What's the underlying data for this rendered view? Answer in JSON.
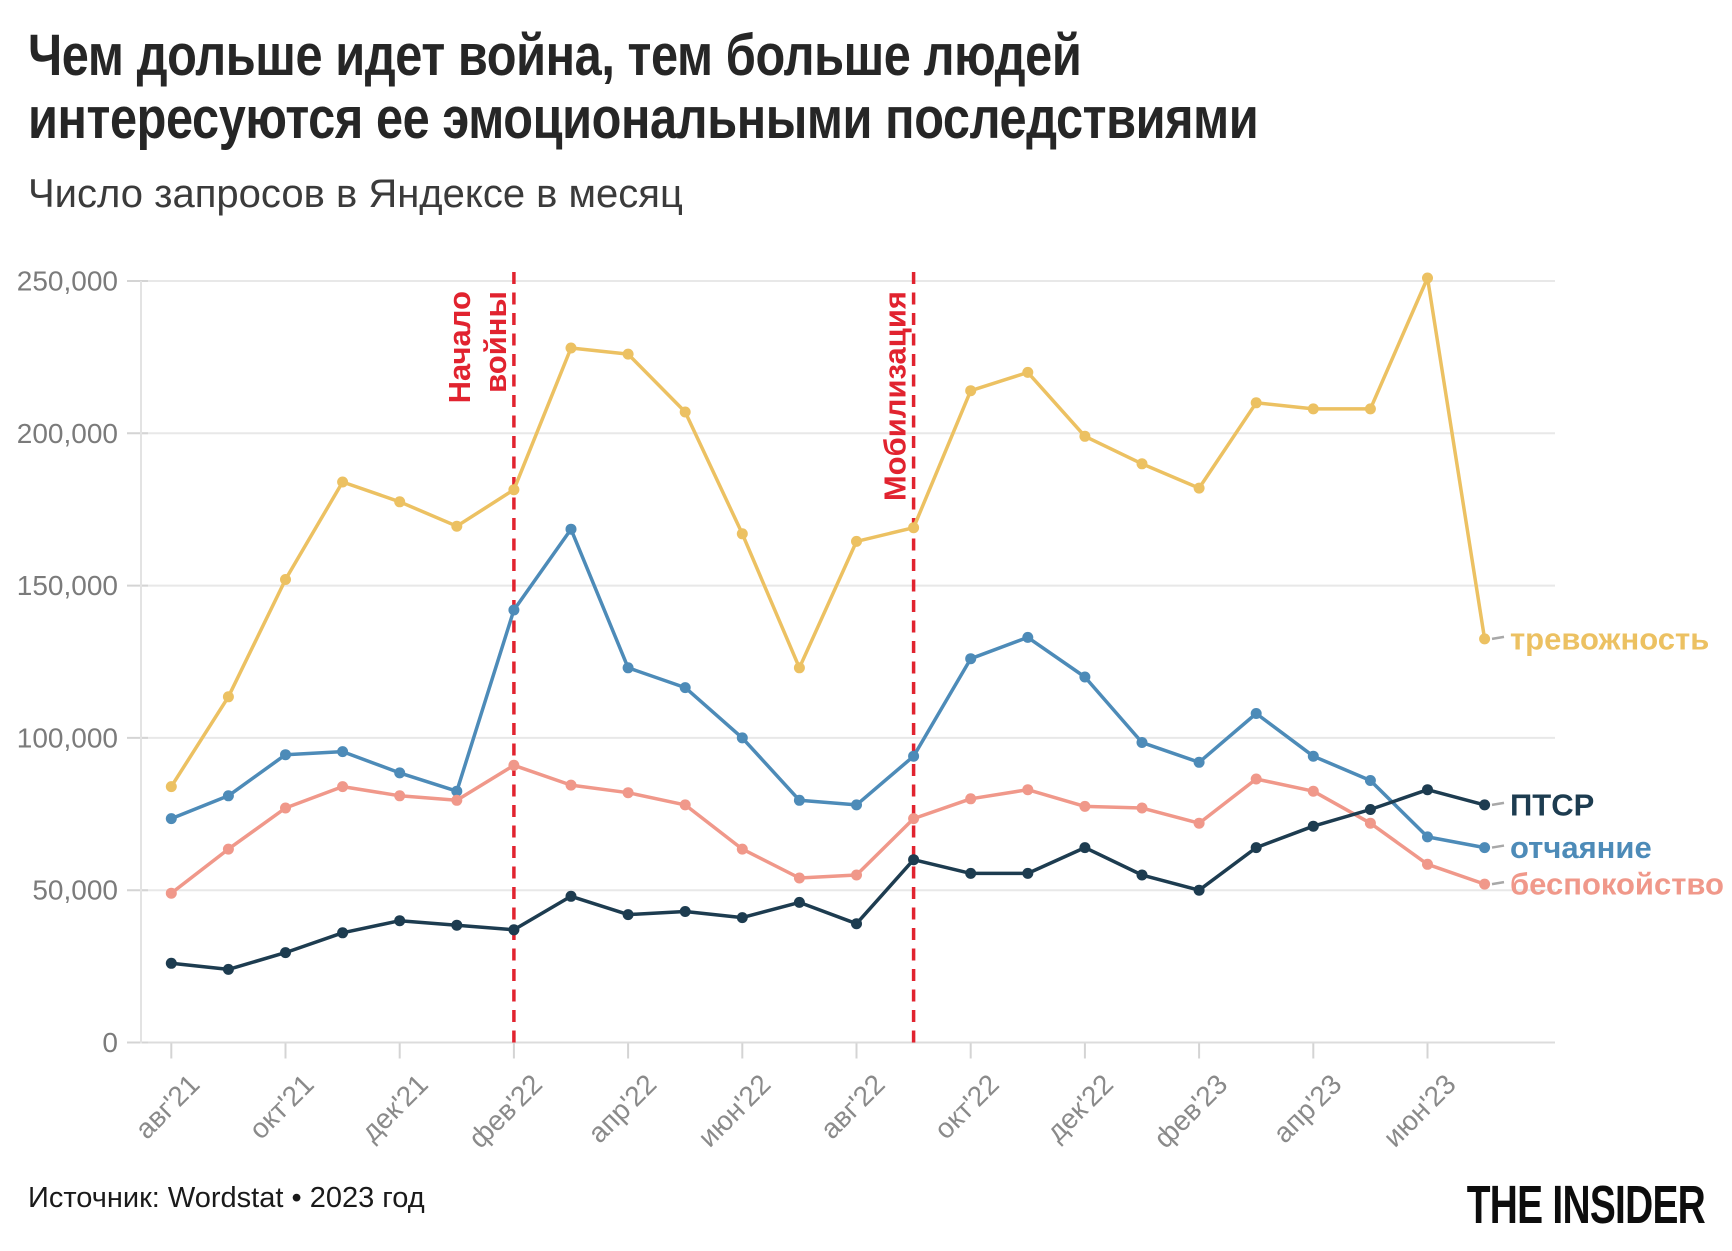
{
  "header": {
    "title_line1": "Чем дольше идет война, тем больше людей",
    "title_line2": "интересуются ее эмоциональными последствиями",
    "subtitle": "Число запросов в Яндексе в месяц"
  },
  "footer": {
    "source": "Источник: Wordstat • 2023 год",
    "logo": "THE INSIDER"
  },
  "colors": {
    "grid": "#e8e8e8",
    "axis_line": "#e3e3e3",
    "tick": "#d4d4d4",
    "axis_text": "#7b7b7b",
    "x_axis_text": "#8a8a8a",
    "legend_dash": "#a8a8a8",
    "annotation_red": "#e1232f",
    "background": "#ffffff"
  },
  "chart_data": {
    "type": "line",
    "title": "Чем дольше идет война, тем больше людей интересуются ее эмоциональными последствиями",
    "subtitle": "Число запросов в Яндексе в месяц",
    "x": [
      "авг'21",
      "сен'21",
      "окт'21",
      "ноя'21",
      "дек'21",
      "янв'22",
      "фев'22",
      "мар'22",
      "апр'22",
      "май'22",
      "июн'22",
      "июл'22",
      "авг'22",
      "сен'22",
      "окт'22",
      "ноя'22",
      "дек'22",
      "янв'23",
      "фев'23",
      "мар'23",
      "апр'23",
      "май'23",
      "июн'23",
      "июл'23"
    ],
    "x_tick_indices": [
      0,
      2,
      4,
      6,
      8,
      10,
      12,
      14,
      16,
      18,
      20,
      22
    ],
    "x_tick_labels": [
      "авг'21",
      "окт'21",
      "дек'21",
      "фев'22",
      "апр'22",
      "июн'22",
      "авг'22",
      "окт'22",
      "дек'22",
      "фев'23",
      "апр'23",
      "июн'23"
    ],
    "ylim": [
      0,
      250000
    ],
    "y_ticks": [
      0,
      50000,
      100000,
      150000,
      200000,
      250000
    ],
    "y_tick_labels": [
      "0",
      "50,000",
      "100,000",
      "150,000",
      "200,000",
      "250,000"
    ],
    "grid": "horizontal",
    "legend_position": "right-end-labels",
    "series": [
      {
        "key": "anxiety",
        "name": "тревожность",
        "color": "#ecc162",
        "values": [
          84000,
          113500,
          152000,
          184000,
          177500,
          169500,
          181500,
          228000,
          226000,
          207000,
          167000,
          123000,
          164500,
          169000,
          214000,
          220000,
          199000,
          190000,
          182000,
          210000,
          208000,
          208000,
          251000,
          132500
        ]
      },
      {
        "key": "despair",
        "name": "отчаяние",
        "color": "#4d8bb8",
        "values": [
          73500,
          81000,
          94500,
          95500,
          88500,
          82500,
          142000,
          168500,
          123000,
          116500,
          100000,
          79500,
          78000,
          94000,
          126000,
          133000,
          120000,
          98500,
          92000,
          108000,
          94000,
          86000,
          67500,
          64000
        ]
      },
      {
        "key": "worry",
        "name": "беспокойство",
        "color": "#f0988a",
        "values": [
          49000,
          63500,
          77000,
          84000,
          81000,
          79500,
          91000,
          84500,
          82000,
          78000,
          63500,
          54000,
          55000,
          73500,
          80000,
          83000,
          77500,
          77000,
          72000,
          86500,
          82500,
          72000,
          58500,
          52000
        ]
      },
      {
        "key": "ptsd",
        "name": "ПТСР",
        "color": "#1d3c50",
        "values": [
          26000,
          24000,
          29500,
          36000,
          40000,
          38500,
          37000,
          48000,
          42000,
          43000,
          41000,
          46000,
          39000,
          60000,
          55500,
          55500,
          64000,
          55000,
          50000,
          64000,
          71000,
          76500,
          83000,
          78000
        ]
      }
    ],
    "annotations": [
      {
        "key": "war-start",
        "label": "Начало войны",
        "label_lines": [
          "Начало",
          "войны"
        ],
        "x": "фев'22",
        "x_index": 6
      },
      {
        "key": "mobilization",
        "label": "Мобилизация",
        "label_lines": [
          "Мобилизация"
        ],
        "x": "сен'22",
        "x_index": 13
      }
    ]
  }
}
